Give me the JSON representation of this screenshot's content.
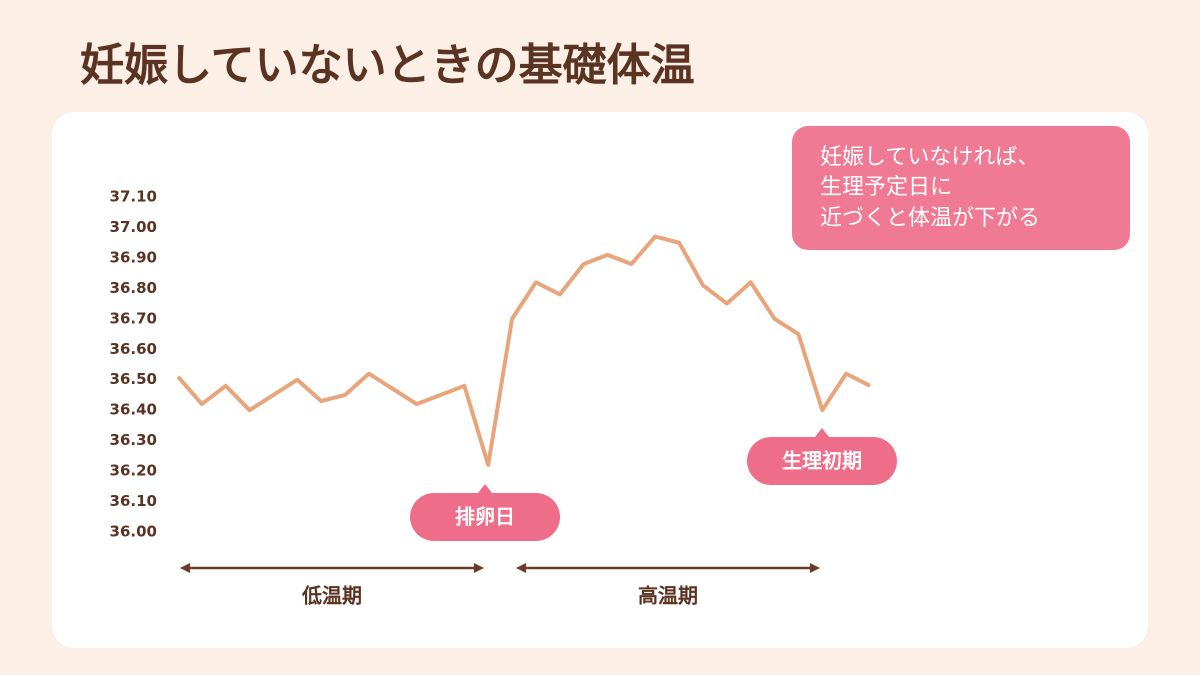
{
  "chart_data": {
    "type": "line",
    "title": "妊娠していないときの基礎体温",
    "note": [
      "妊娠していなければ、",
      "生理予定日に",
      "近づくと体温が下がる"
    ],
    "annotations": [
      "排卵日",
      "生理初期"
    ],
    "phases": [
      "低温期",
      "高温期"
    ],
    "categories": [
      null,
      null,
      null,
      null,
      null,
      null,
      null,
      null,
      null,
      null,
      null,
      null,
      null,
      null,
      null,
      null,
      null,
      null,
      null,
      null,
      null,
      null,
      null,
      null,
      null,
      null,
      null,
      null,
      null,
      null
    ],
    "values": [
      36.51,
      36.42,
      36.48,
      36.4,
      36.45,
      36.5,
      36.43,
      36.45,
      36.52,
      36.47,
      36.42,
      36.45,
      36.48,
      36.22,
      36.7,
      36.82,
      36.78,
      36.88,
      36.91,
      36.88,
      36.97,
      36.95,
      36.81,
      36.75,
      36.82,
      36.7,
      36.65,
      36.4,
      36.52,
      36.48
    ],
    "color": "#e8a57b",
    "ylim": [
      36,
      37.1
    ],
    "yticks": [
      {
        "value": 36,
        "label": "36.00"
      },
      {
        "value": 36.1,
        "label": "36.10"
      },
      {
        "value": 36.2,
        "label": "36.20"
      },
      {
        "value": 36.3,
        "label": "36.30"
      },
      {
        "value": 36.4,
        "label": "36.40"
      },
      {
        "value": 36.5,
        "label": "36.50"
      },
      {
        "value": 36.6,
        "label": "36.60"
      },
      {
        "value": 36.7,
        "label": "36.70"
      },
      {
        "value": 36.8,
        "label": "36.80"
      },
      {
        "value": 36.9,
        "label": "36.90"
      },
      {
        "value": 37,
        "label": "37.00"
      },
      {
        "value": 37.1,
        "label": "37.10"
      }
    ],
    "grid": false
  }
}
